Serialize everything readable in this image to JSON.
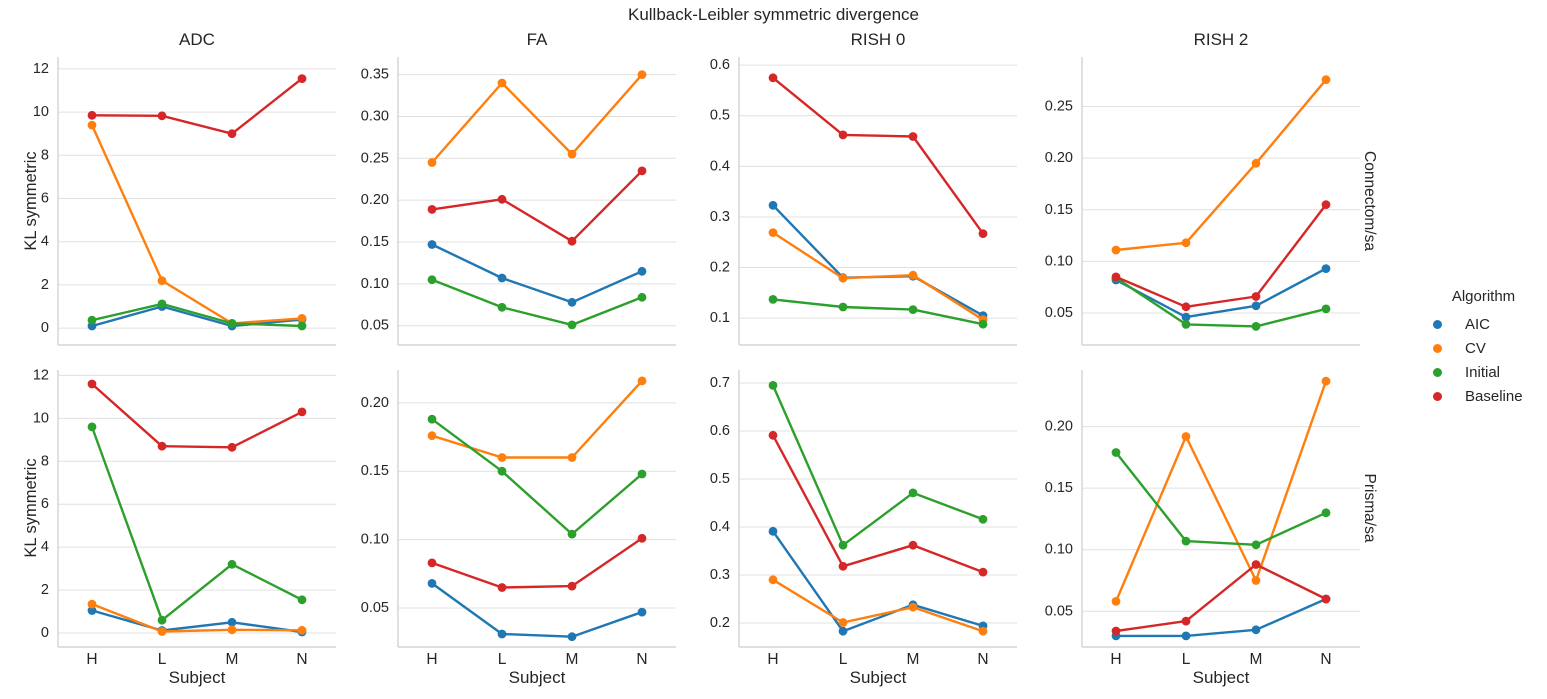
{
  "title": "Kullback-Leibler symmetric divergence",
  "chart_data": {
    "type": "line",
    "suptitle": "Kullback-Leibler symmetric divergence",
    "categories": [
      "H",
      "L",
      "M",
      "N"
    ],
    "xlabel": "Subject",
    "ylabel": "KL symmetric",
    "grid": true,
    "legend": {
      "title": "Algorithm",
      "position": "right",
      "entries": [
        "AIC",
        "CV",
        "Initial",
        "Baseline"
      ]
    },
    "series_colors": {
      "AIC": "#1f77b4",
      "CV": "#ff7f0e",
      "Initial": "#2ca02c",
      "Baseline": "#d62728"
    },
    "row_labels": [
      "Connectom/sa",
      "Prisma/sa"
    ],
    "column_titles": [
      "ADC",
      "FA",
      "RISH 0",
      "RISH 2"
    ],
    "subplots": [
      {
        "row": "Connectom/sa",
        "column": "ADC",
        "ylim": [
          -0.78,
          12.55
        ],
        "yticks": [
          0,
          2,
          4,
          6,
          8,
          10,
          12
        ],
        "ytick_labels": [
          "0",
          "2",
          "4",
          "6",
          "8",
          "10",
          "12"
        ],
        "series": [
          {
            "name": "AIC",
            "values": [
              0.1,
              1.0,
              0.1,
              0.4
            ]
          },
          {
            "name": "CV",
            "values": [
              9.4,
              2.2,
              0.22,
              0.45
            ]
          },
          {
            "name": "Initial",
            "values": [
              0.37,
              1.12,
              0.22,
              0.1
            ]
          },
          {
            "name": "Baseline",
            "values": [
              9.85,
              9.83,
              9.0,
              11.55
            ]
          }
        ]
      },
      {
        "row": "Connectom/sa",
        "column": "FA",
        "ylim": [
          0.027,
          0.371
        ],
        "yticks": [
          0.05,
          0.1,
          0.15,
          0.2,
          0.25,
          0.3,
          0.35
        ],
        "ytick_labels": [
          "0.05",
          "0.10",
          "0.15",
          "0.20",
          "0.25",
          "0.30",
          "0.35"
        ],
        "series": [
          {
            "name": "AIC",
            "values": [
              0.147,
              0.107,
              0.078,
              0.115
            ]
          },
          {
            "name": "CV",
            "values": [
              0.245,
              0.34,
              0.255,
              0.35
            ]
          },
          {
            "name": "Initial",
            "values": [
              0.105,
              0.072,
              0.051,
              0.084
            ]
          },
          {
            "name": "Baseline",
            "values": [
              0.189,
              0.201,
              0.151,
              0.235
            ]
          }
        ]
      },
      {
        "row": "Connectom/sa",
        "column": "RISH 0",
        "ylim": [
          0.047,
          0.616
        ],
        "yticks": [
          0.1,
          0.2,
          0.3,
          0.4,
          0.5,
          0.6
        ],
        "ytick_labels": [
          "0.1",
          "0.2",
          "0.3",
          "0.4",
          "0.5",
          "0.6"
        ],
        "series": [
          {
            "name": "AIC",
            "values": [
              0.323,
              0.18,
              0.183,
              0.105
            ]
          },
          {
            "name": "CV",
            "values": [
              0.269,
              0.179,
              0.185,
              0.097
            ]
          },
          {
            "name": "Initial",
            "values": [
              0.137,
              0.122,
              0.117,
              0.088
            ]
          },
          {
            "name": "Baseline",
            "values": [
              0.575,
              0.462,
              0.459,
              0.267
            ]
          }
        ]
      },
      {
        "row": "Connectom/sa",
        "column": "RISH 2",
        "ylim": [
          0.019,
          0.298
        ],
        "yticks": [
          0.05,
          0.1,
          0.15,
          0.2,
          0.25
        ],
        "ytick_labels": [
          "0.05",
          "0.10",
          "0.15",
          "0.20",
          "0.25"
        ],
        "series": [
          {
            "name": "AIC",
            "values": [
              0.082,
              0.046,
              0.057,
              0.093
            ]
          },
          {
            "name": "CV",
            "values": [
              0.111,
              0.118,
              0.195,
              0.276
            ]
          },
          {
            "name": "Initial",
            "values": [
              0.084,
              0.039,
              0.037,
              0.054
            ]
          },
          {
            "name": "Baseline",
            "values": [
              0.085,
              0.056,
              0.066,
              0.155
            ]
          }
        ]
      },
      {
        "row": "Prisma/sa",
        "column": "ADC",
        "ylim": [
          -0.65,
          12.25
        ],
        "yticks": [
          0,
          2,
          4,
          6,
          8,
          10,
          12
        ],
        "ytick_labels": [
          "0",
          "2",
          "4",
          "6",
          "8",
          "10",
          "12"
        ],
        "series": [
          {
            "name": "AIC",
            "values": [
              1.05,
              0.12,
              0.5,
              0.05
            ]
          },
          {
            "name": "CV",
            "values": [
              1.35,
              0.07,
              0.15,
              0.13
            ]
          },
          {
            "name": "Initial",
            "values": [
              9.6,
              0.6,
              3.2,
              1.55
            ]
          },
          {
            "name": "Baseline",
            "values": [
              11.6,
              8.7,
              8.65,
              10.3
            ]
          }
        ]
      },
      {
        "row": "Prisma/sa",
        "column": "FA",
        "ylim": [
          0.0215,
          0.224
        ],
        "yticks": [
          0.05,
          0.1,
          0.15,
          0.2
        ],
        "ytick_labels": [
          "0.05",
          "0.10",
          "0.15",
          "0.20"
        ],
        "series": [
          {
            "name": "AIC",
            "values": [
              0.068,
              0.031,
              0.029,
              0.047
            ]
          },
          {
            "name": "CV",
            "values": [
              0.176,
              0.16,
              0.16,
              0.216
            ]
          },
          {
            "name": "Initial",
            "values": [
              0.188,
              0.15,
              0.104,
              0.148
            ]
          },
          {
            "name": "Baseline",
            "values": [
              0.083,
              0.065,
              0.066,
              0.101
            ]
          }
        ]
      },
      {
        "row": "Prisma/sa",
        "column": "RISH 0",
        "ylim": [
          0.15,
          0.727
        ],
        "yticks": [
          0.2,
          0.3,
          0.4,
          0.5,
          0.6,
          0.7
        ],
        "ytick_labels": [
          "0.2",
          "0.3",
          "0.4",
          "0.5",
          "0.6",
          "0.7"
        ],
        "series": [
          {
            "name": "AIC",
            "values": [
              0.391,
              0.183,
              0.238,
              0.194
            ]
          },
          {
            "name": "CV",
            "values": [
              0.29,
              0.201,
              0.233,
              0.183
            ]
          },
          {
            "name": "Initial",
            "values": [
              0.695,
              0.362,
              0.471,
              0.416
            ]
          },
          {
            "name": "Baseline",
            "values": [
              0.591,
              0.318,
              0.362,
              0.306
            ]
          }
        ]
      },
      {
        "row": "Prisma/sa",
        "column": "RISH 2",
        "ylim": [
          0.021,
          0.246
        ],
        "yticks": [
          0.05,
          0.1,
          0.15,
          0.2
        ],
        "ytick_labels": [
          "0.05",
          "0.10",
          "0.15",
          "0.20"
        ],
        "series": [
          {
            "name": "AIC",
            "values": [
              0.03,
              0.03,
              0.035,
              0.06
            ]
          },
          {
            "name": "CV",
            "values": [
              0.058,
              0.192,
              0.075,
              0.237
            ]
          },
          {
            "name": "Initial",
            "values": [
              0.179,
              0.107,
              0.104,
              0.13
            ]
          },
          {
            "name": "Baseline",
            "values": [
              0.034,
              0.042,
              0.088,
              0.06
            ]
          }
        ]
      }
    ],
    "style": {
      "grid_color": "#e0e0e0",
      "spine_color": "#cccccc",
      "text_color": "#262626",
      "background": "#ffffff"
    }
  }
}
